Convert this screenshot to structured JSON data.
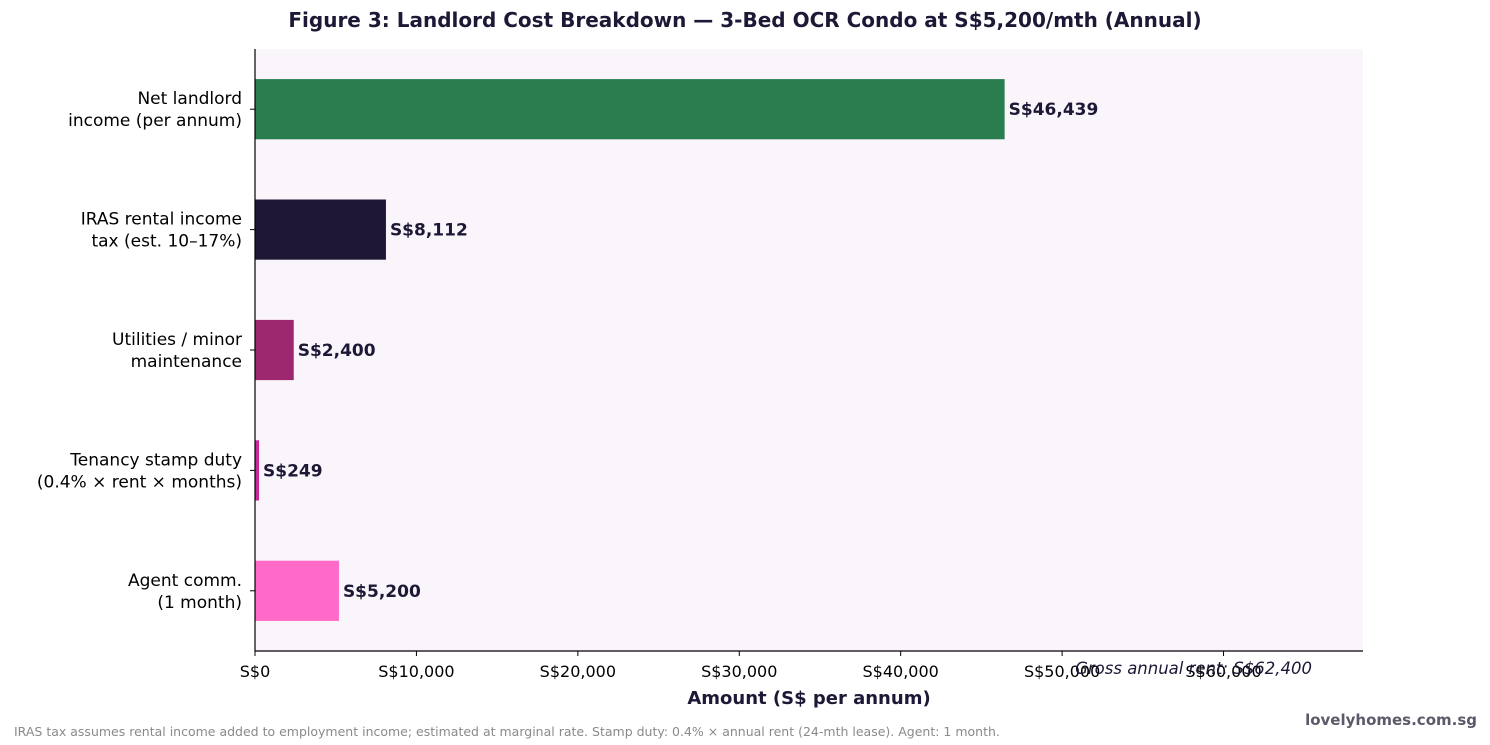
{
  "chart_data": {
    "type": "bar",
    "orientation": "horizontal",
    "title": "Figure 3: Landlord Cost Breakdown — 3-Bed OCR Condo at S$5,200/mth (Annual)",
    "xlabel": "Amount (S$ per annum)",
    "ylabel": "",
    "xlim": [
      0,
      68640
    ],
    "xticks": [
      0,
      10000,
      20000,
      30000,
      40000,
      50000,
      60000
    ],
    "xtick_labels": [
      "S$0",
      "S$10,000",
      "S$20,000",
      "S$30,000",
      "S$40,000",
      "S$50,000",
      "S$60,000"
    ],
    "categories": [
      [
        "Agent comm.",
        "(1 month)"
      ],
      [
        "Tenancy stamp duty",
        "(0.4% × rent × months)"
      ],
      [
        "Utilities / minor",
        "maintenance"
      ],
      [
        "IRAS rental income",
        "tax (est. 10–17%)"
      ],
      [
        "Net landlord",
        "income (per annum)"
      ]
    ],
    "values": [
      5200,
      249,
      2400,
      8112,
      46439
    ],
    "value_labels": [
      "S$5,200",
      "S$249",
      "S$2,400",
      "S$8,112",
      "S$46,439"
    ],
    "colors": [
      "#ff69c8",
      "#c72a9a",
      "#9e2870",
      "#1e1836",
      "#2a7d4f"
    ],
    "annotation": "Gross annual rent: S$62,400",
    "grid": false,
    "legend": "none",
    "plot_background": "#faf5fa"
  },
  "footnote": "IRAS tax assumes rental income added to employment income; estimated at marginal rate. Stamp duty: 0.4% × annual rent (24-mth lease). Agent: 1 month.",
  "brand": "lovelyhomes.com.sg"
}
